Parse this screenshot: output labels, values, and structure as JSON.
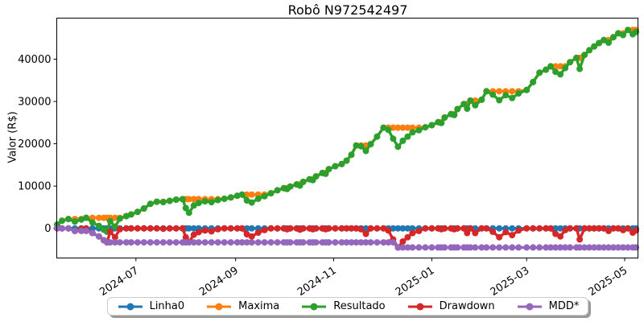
{
  "chart": {
    "title": "Robô N972542497",
    "ylabel": "Valor (R$)"
  },
  "chart_data": {
    "type": "line",
    "title": "Robô N972542497",
    "xlabel": "",
    "ylabel": "Valor (R$)",
    "grid": false,
    "legend_position": "bottom-center-outside",
    "marker": "circle",
    "x_ticks": [
      "2024-07",
      "2024-09",
      "2024-11",
      "2025-01",
      "2025-03",
      "2025-05"
    ],
    "y_ticks": [
      0,
      10000,
      20000,
      30000,
      40000
    ],
    "xlim": [
      "2024-05-13",
      "2025-05-08"
    ],
    "ylim": [
      -7000,
      49700
    ],
    "dates": [
      "2024-05-13",
      "2024-05-16",
      "2024-05-20",
      "2024-05-24",
      "2024-05-28",
      "2024-05-31",
      "2024-06-04",
      "2024-06-08",
      "2024-06-11",
      "2024-06-13",
      "2024-06-15",
      "2024-06-18",
      "2024-06-21",
      "2024-06-25",
      "2024-06-28",
      "2024-07-02",
      "2024-07-06",
      "2024-07-10",
      "2024-07-14",
      "2024-07-18",
      "2024-07-22",
      "2024-07-26",
      "2024-07-30",
      "2024-08-01",
      "2024-08-03",
      "2024-08-06",
      "2024-08-09",
      "2024-08-13",
      "2024-08-17",
      "2024-08-21",
      "2024-08-25",
      "2024-08-29",
      "2024-09-02",
      "2024-09-05",
      "2024-09-08",
      "2024-09-11",
      "2024-09-15",
      "2024-09-19",
      "2024-09-23",
      "2024-09-27",
      "2024-10-01",
      "2024-10-03",
      "2024-10-05",
      "2024-10-09",
      "2024-10-11",
      "2024-10-13",
      "2024-10-17",
      "2024-10-19",
      "2024-10-21",
      "2024-10-25",
      "2024-10-27",
      "2024-10-29",
      "2024-11-02",
      "2024-11-06",
      "2024-11-09",
      "2024-11-12",
      "2024-11-15",
      "2024-11-18",
      "2024-11-21",
      "2024-11-24",
      "2024-11-28",
      "2024-12-02",
      "2024-12-05",
      "2024-12-08",
      "2024-12-11",
      "2024-12-14",
      "2024-12-17",
      "2024-12-20",
      "2024-12-24",
      "2024-12-28",
      "2025-01-01",
      "2025-01-05",
      "2025-01-07",
      "2025-01-09",
      "2025-01-13",
      "2025-01-15",
      "2025-01-17",
      "2025-01-21",
      "2025-01-23",
      "2025-01-25",
      "2025-01-28",
      "2025-02-01",
      "2025-02-04",
      "2025-02-08",
      "2025-02-12",
      "2025-02-16",
      "2025-02-20",
      "2025-02-24",
      "2025-03-01",
      "2025-03-05",
      "2025-03-09",
      "2025-03-13",
      "2025-03-16",
      "2025-03-19",
      "2025-03-22",
      "2025-03-25",
      "2025-03-28",
      "2025-04-01",
      "2025-04-03",
      "2025-04-06",
      "2025-04-09",
      "2025-04-12",
      "2025-04-15",
      "2025-04-18",
      "2025-04-21",
      "2025-04-24",
      "2025-04-27",
      "2025-04-30",
      "2025-05-03",
      "2025-05-06",
      "2025-05-08"
    ],
    "resultado": [
      900,
      1800,
      2200,
      1600,
      2100,
      2500,
      1400,
      600,
      -300,
      -800,
      1700,
      400,
      2300,
      2900,
      3300,
      3900,
      4700,
      5800,
      6300,
      6200,
      6500,
      6800,
      6900,
      4800,
      3700,
      5400,
      6000,
      6400,
      6200,
      6700,
      7000,
      7300,
      7700,
      8000,
      6600,
      6100,
      7000,
      7600,
      8300,
      9000,
      9500,
      9300,
      9900,
      10400,
      10100,
      11000,
      11600,
      11400,
      12300,
      13100,
      12900,
      14000,
      14700,
      15200,
      16000,
      17400,
      19600,
      19400,
      18300,
      19900,
      21700,
      23800,
      23300,
      21200,
      19300,
      20700,
      21700,
      22700,
      23200,
      23900,
      24400,
      25100,
      24900,
      26200,
      27000,
      26800,
      28200,
      29400,
      28300,
      30200,
      29100,
      30400,
      32400,
      31600,
      30300,
      31500,
      30800,
      31900,
      32700,
      34600,
      36800,
      37500,
      38300,
      37000,
      36400,
      37900,
      39300,
      40300,
      37700,
      41000,
      42100,
      43000,
      43800,
      44500,
      43900,
      45200,
      46100,
      45700,
      46900,
      45900,
      46400
    ],
    "series": [
      {
        "name": "Linha0",
        "color": "#1f77b4",
        "derive": "zero"
      },
      {
        "name": "Maxima",
        "color": "#ff7f0e",
        "derive": "running_max"
      },
      {
        "name": "Resultado",
        "color": "#2ca02c",
        "derive": "values"
      },
      {
        "name": "Drawdown",
        "color": "#d62728",
        "derive": "value_minus_running_max"
      },
      {
        "name": "MDD*",
        "color": "#9467bd",
        "derive": "running_min_drawdown"
      }
    ]
  }
}
